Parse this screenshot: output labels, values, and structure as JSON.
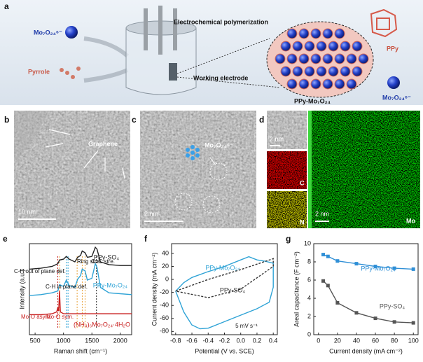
{
  "figure": {
    "a": {
      "label": "a",
      "anion_left": "Mo₇O₂₄⁶⁻",
      "monomer": "Pyrrole",
      "process": "Electrochemical polymerization",
      "electrode": "Working electrode",
      "composite": "PPy-Mo₇O₂₄",
      "polymer": "PPy",
      "anion_right": "Mo₇O₂₄⁶⁻"
    },
    "b": {
      "label": "b",
      "feature": "Graphene",
      "scale": "10 nm"
    },
    "c": {
      "label": "c",
      "feature": "Mo₇O₂₄⁶⁻",
      "scale": "2 nm"
    },
    "d": {
      "label": "d",
      "inset_scale": "2 nm",
      "map_c": "C",
      "map_n": "N",
      "map_scale": "2 nm",
      "map_mo": "Mo"
    }
  },
  "chart_data": [
    {
      "type": "line",
      "label": "e",
      "xlabel": "Raman shift (cm⁻¹)",
      "ylabel": "Intensity (a.u.)",
      "xlim": [
        400,
        2200
      ],
      "xticks": [
        500,
        1000,
        1500,
        2000
      ],
      "ylim": [
        0,
        10
      ],
      "series": [
        {
          "name": "PPy-SO₄",
          "color": "#222222",
          "x": [
            400,
            600,
            800,
            900,
            930,
            1000,
            1050,
            1100,
            1200,
            1250,
            1300,
            1330,
            1380,
            1420,
            1500,
            1560,
            1590,
            1650,
            1800,
            2000,
            2200
          ],
          "values": [
            7.2,
            7.3,
            7.5,
            7.8,
            8.2,
            8.3,
            8.6,
            8.3,
            8.0,
            8.5,
            8.7,
            9.2,
            9.0,
            8.5,
            8.6,
            9.6,
            9.4,
            8.0,
            7.7,
            7.6,
            7.6
          ]
        },
        {
          "name": "PPy-Mo₇O₂₄",
          "color": "#2fa3d6",
          "x": [
            400,
            600,
            800,
            900,
            930,
            1000,
            1050,
            1100,
            1200,
            1250,
            1300,
            1330,
            1380,
            1420,
            1500,
            1560,
            1590,
            1650,
            1800,
            2000,
            2200
          ],
          "values": [
            4.3,
            4.4,
            4.6,
            4.8,
            5.5,
            5.3,
            6.0,
            5.4,
            5.2,
            6.1,
            6.5,
            7.2,
            7.0,
            6.0,
            6.2,
            7.8,
            7.4,
            5.2,
            4.6,
            4.5,
            4.4
          ]
        },
        {
          "name": "(NH₄)₆Mo₇O₂₄·4H₂O",
          "color": "#c81e1e",
          "x": [
            400,
            600,
            800,
            880,
            900,
            915,
            930,
            945,
            1000,
            1200,
            1500,
            1800,
            2200
          ],
          "values": [
            2.2,
            2.2,
            2.3,
            2.5,
            3.0,
            2.6,
            4.8,
            2.5,
            2.3,
            2.3,
            2.3,
            2.3,
            2.3
          ]
        }
      ],
      "band_lines": [
        {
          "x": 900,
          "color": "#c81e1e"
        },
        {
          "x": 935,
          "color": "#e8a23a"
        },
        {
          "x": 1050,
          "color": "#2fa3d6"
        },
        {
          "x": 1080,
          "color": "#2fa3d6"
        },
        {
          "x": 1240,
          "color": "#e8a23a"
        },
        {
          "x": 1330,
          "color": "#e8a23a"
        },
        {
          "x": 1380,
          "color": "#e8a23a"
        },
        {
          "x": 1580,
          "color": "#222222"
        }
      ],
      "annotations": [
        "C-H out of plane def.",
        "C-H in plane def.",
        "Ring stre.",
        "C=C stre.",
        "Mo-O asym.",
        "Mo-O sym."
      ]
    },
    {
      "type": "line",
      "label": "f",
      "xlabel": "Potential (V vs. SCE)",
      "ylabel": "Current density (mA cm⁻²)",
      "xlim": [
        -0.85,
        0.45
      ],
      "xticks": [
        -0.8,
        -0.6,
        -0.4,
        -0.2,
        {
          "value": 0,
          "label": "0.0"
        },
        0.2,
        0.4
      ],
      "ylim": [
        -85,
        55
      ],
      "yticks": [
        -80,
        -60,
        -40,
        -20,
        0,
        20,
        40
      ],
      "series": [
        {
          "name": "PPy-Mo₇O₂₄",
          "color": "#2fa3d6",
          "x": [
            -0.8,
            -0.7,
            -0.6,
            -0.4,
            -0.2,
            0,
            0.1,
            0.2,
            0.3,
            0.4,
            0.4,
            0.35,
            0.2,
            0,
            -0.2,
            -0.4,
            -0.5,
            -0.6,
            -0.7,
            -0.8
          ],
          "values": [
            -18,
            -5,
            3,
            12,
            20,
            30,
            35,
            30,
            28,
            25,
            -12,
            -35,
            -45,
            -55,
            -65,
            -75,
            -76,
            -70,
            -50,
            -18
          ]
        },
        {
          "name": "PPy-SO₄",
          "color": "#333333",
          "style": "dashed",
          "x": [
            -0.8,
            -0.4,
            0,
            0.4,
            0.4,
            0,
            -0.4,
            -0.8
          ],
          "values": [
            -18,
            0,
            15,
            32,
            20,
            -15,
            -28,
            -18
          ]
        }
      ],
      "annotations": [
        "5 mV s⁻¹"
      ]
    },
    {
      "type": "line",
      "label": "g",
      "xlabel": "Current density (mA cm⁻²)",
      "ylabel": "Areal capacitance (F cm⁻²)",
      "xlim": [
        -5,
        105
      ],
      "xticks": [
        0,
        20,
        40,
        60,
        80,
        100
      ],
      "ylim": [
        0,
        10
      ],
      "yticks": [
        0,
        2,
        4,
        6,
        8,
        10
      ],
      "marker": "square",
      "series": [
        {
          "name": "PPy-Mo₇O₂₄",
          "color": "#2f8fd6",
          "x": [
            5,
            10,
            20,
            40,
            60,
            80,
            100
          ],
          "values": [
            8.8,
            8.6,
            8.1,
            7.8,
            7.5,
            7.3,
            7.2
          ]
        },
        {
          "name": "PPy-SO₄",
          "color": "#555555",
          "x": [
            5,
            10,
            20,
            40,
            60,
            80,
            100
          ],
          "values": [
            5.9,
            5.4,
            3.5,
            2.4,
            1.8,
            1.4,
            1.3
          ]
        }
      ]
    }
  ]
}
